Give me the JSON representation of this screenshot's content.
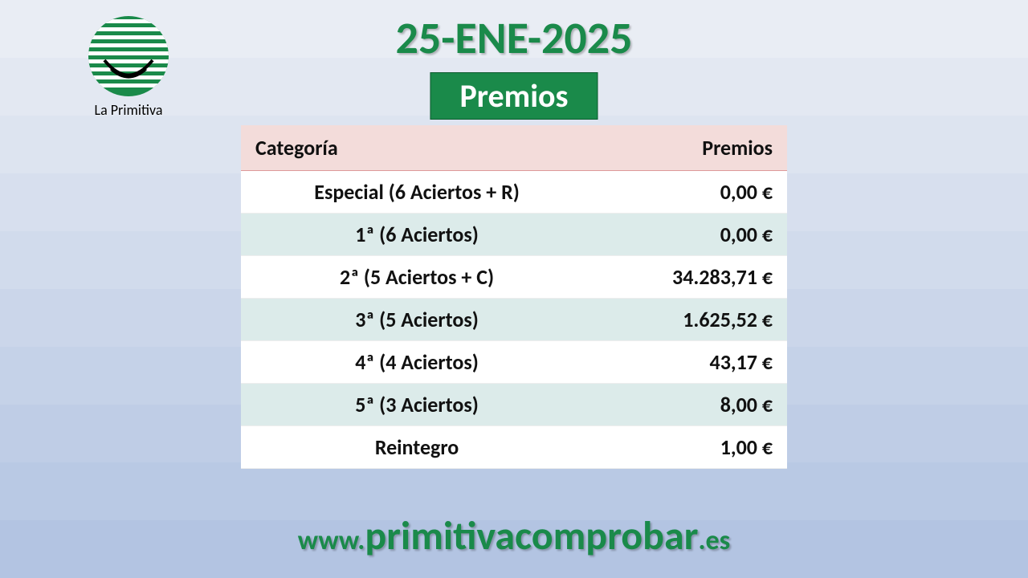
{
  "logo": {
    "caption": "La Primitiva",
    "circle_color": "#1a8a4a",
    "stripe_color": "#ffffff",
    "smile_color": "#000000"
  },
  "date_title": "25-ENE-2025",
  "badge": "Premios",
  "colors": {
    "accent_green": "#1a8a4a",
    "header_row_bg": "#f3dcda",
    "row_even_bg": "#dcebea",
    "row_odd_bg": "#ffffff"
  },
  "table": {
    "columns": [
      "Categoría",
      "Premios"
    ],
    "rows": [
      {
        "category": "Especial (6 Aciertos + R)",
        "amount": "0,00 €"
      },
      {
        "category": "1ª (6 Aciertos)",
        "amount": "0,00 €"
      },
      {
        "category": "2ª (5 Aciertos + C)",
        "amount": "34.283,71 €"
      },
      {
        "category": "3ª (5 Aciertos)",
        "amount": "1.625,52 €"
      },
      {
        "category": "4ª (4 Aciertos)",
        "amount": "43,17 €"
      },
      {
        "category": "5ª (3 Aciertos)",
        "amount": "8,00 €"
      },
      {
        "category": "Reintegro",
        "amount": "1,00 €"
      }
    ]
  },
  "footer": {
    "prefix": "www.",
    "domain": "primitivacomprobar",
    "suffix": ".es"
  }
}
